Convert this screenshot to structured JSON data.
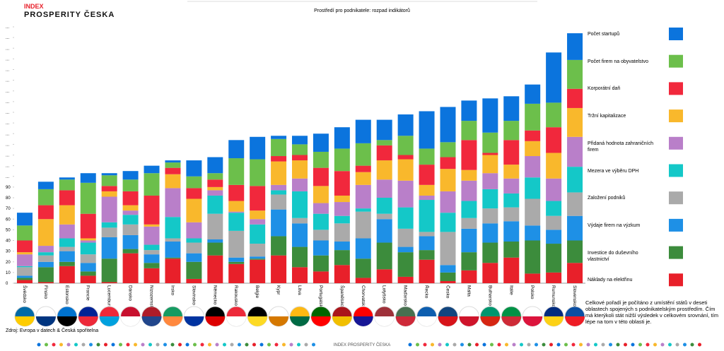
{
  "chart_data": {
    "type": "stacked_bar",
    "title": "Prostředí pro podnikatele: rozpad indikátorů",
    "brand_top": "INDEX",
    "brand": "PROSPERITY ČESKA",
    "footer_brand": "INDEX PROSPERITY ČESKA",
    "source": "Zdroj: Evropa v datech & Česká spořitelna",
    "note": "Celkové pořadí je počítáno z umístění států v deseti oblastech spojených s podnikatelským prostředím. Čím má kterýkoli stát nižší výsledek v celkovém srovnání, tím lépe na tom v této oblasti je.",
    "categories": [
      "Švédsko",
      "Finsko",
      "Estonsko",
      "Francie",
      "Lucembursko",
      "Dánsko",
      "Nizozemsko",
      "Irsko",
      "Slovinsko",
      "Německo",
      "Rakousko",
      "Belgie",
      "Kypr",
      "Litva",
      "Portugalsko",
      "Španělsko",
      "Chorvatsko",
      "Lotyšsko",
      "Maďarsko",
      "Řecko",
      "Česko",
      "Malta",
      "Bulharsko",
      "Itálie",
      "Polsko",
      "Rumunsko",
      "Slovensko"
    ],
    "ylim": [
      0,
      240
    ],
    "yticks": [
      0,
      10,
      20,
      30,
      40,
      50,
      60,
      70,
      80,
      90,
      {
        "value": 100,
        "label": "..."
      },
      {
        "value": 110,
        "label": "..."
      },
      {
        "value": 120,
        "label": "..."
      },
      {
        "value": 130,
        "label": "..."
      },
      {
        "value": 140,
        "label": "..."
      },
      {
        "value": 150,
        "label": "..."
      },
      {
        "value": 160,
        "label": "..."
      },
      {
        "value": 170,
        "label": "..."
      },
      {
        "value": 180,
        "label": "..."
      },
      {
        "value": 190,
        "label": "..."
      },
      {
        "value": 200,
        "label": "..."
      },
      {
        "value": 210,
        "label": "..."
      },
      {
        "value": 220,
        "label": "..."
      },
      {
        "value": 230,
        "label": "..."
      },
      {
        "value": 240,
        "label": "..."
      }
    ],
    "grid": false,
    "legend": "right",
    "series": [
      {
        "name": "Počet startupů",
        "color": "#0b74dd",
        "values": [
          12,
          7,
          2,
          9,
          2,
          8,
          7,
          2,
          15,
          15,
          17,
          21,
          3,
          8,
          17,
          20,
          22,
          19,
          20,
          35,
          33,
          19,
          32,
          23,
          18,
          47,
          25
        ]
      },
      {
        "name": "Počet firem na obyvatelstvo",
        "color": "#6cbf4b",
        "values": [
          14,
          15,
          10,
          29,
          10,
          11,
          21,
          5,
          11,
          6,
          25,
          25,
          16,
          10,
          15,
          21,
          21,
          5,
          18,
          15,
          14,
          18,
          19,
          18,
          25,
          23,
          27
        ]
      },
      {
        "name": "Korporátní daň",
        "color": "#f1283c",
        "values": [
          11,
          13,
          14,
          23,
          5,
          13,
          27,
          6,
          10,
          7,
          15,
          23,
          5,
          5,
          17,
          23,
          6,
          14,
          4,
          19,
          11,
          28,
          2,
          23,
          10,
          24,
          18
        ]
      },
      {
        "name": "Tržní kapitalizace",
        "color": "#f9b82c",
        "values": [
          2,
          25,
          18,
          2,
          5,
          5,
          2,
          13,
          22,
          3,
          10,
          8,
          22,
          17,
          16,
          6,
          12,
          18,
          20,
          10,
          21,
          10,
          17,
          13,
          14,
          24,
          27
        ]
      },
      {
        "name": "Přidaná hodnota zahraničních firem",
        "color": "#b97fc9",
        "values": [
          11,
          6,
          13,
          2,
          24,
          4,
          17,
          27,
          15,
          5,
          1,
          5,
          5,
          12,
          10,
          13,
          22,
          17,
          25,
          4,
          20,
          19,
          15,
          14,
          20,
          21,
          28
        ]
      },
      {
        "name": "Mezera ve výběru DPH",
        "color": "#14c8c8",
        "values": [
          1,
          3,
          8,
          11,
          5,
          9,
          5,
          20,
          4,
          17,
          17,
          18,
          4,
          25,
          15,
          7,
          3,
          15,
          20,
          30,
          18,
          16,
          18,
          13,
          20,
          14,
          24
        ]
      },
      {
        "name": "Založení podniků",
        "color": "#aaaaaa",
        "values": [
          8,
          6,
          4,
          8,
          9,
          10,
          4,
          3,
          10,
          24,
          25,
          12,
          14,
          5,
          10,
          17,
          25,
          5,
          17,
          4,
          31,
          10,
          14,
          13,
          25,
          13,
          22
        ]
      },
      {
        "name": "Výdaje firem na výzkum",
        "color": "#1e90e6",
        "values": [
          2,
          5,
          10,
          8,
          20,
          13,
          8,
          15,
          8,
          3,
          4,
          2,
          25,
          22,
          14,
          8,
          19,
          22,
          5,
          13,
          7,
          22,
          18,
          19,
          14,
          13,
          23
        ]
      },
      {
        "name": "Investice do duševního vlastnictví",
        "color": "#3c8c3c",
        "values": [
          2,
          14,
          4,
          4,
          22,
          4,
          5,
          1,
          16,
          12,
          2,
          1,
          18,
          19,
          15,
          14,
          18,
          25,
          23,
          9,
          8,
          17,
          19,
          15,
          31,
          27,
          21
        ]
      },
      {
        "name": "Náklady na elektřinu",
        "color": "#e8202a",
        "values": [
          3,
          1,
          16,
          7,
          1,
          28,
          14,
          23,
          4,
          26,
          18,
          22,
          26,
          15,
          11,
          17,
          5,
          13,
          6,
          22,
          2,
          12,
          19,
          24,
          9,
          10,
          19
        ]
      }
    ]
  }
}
